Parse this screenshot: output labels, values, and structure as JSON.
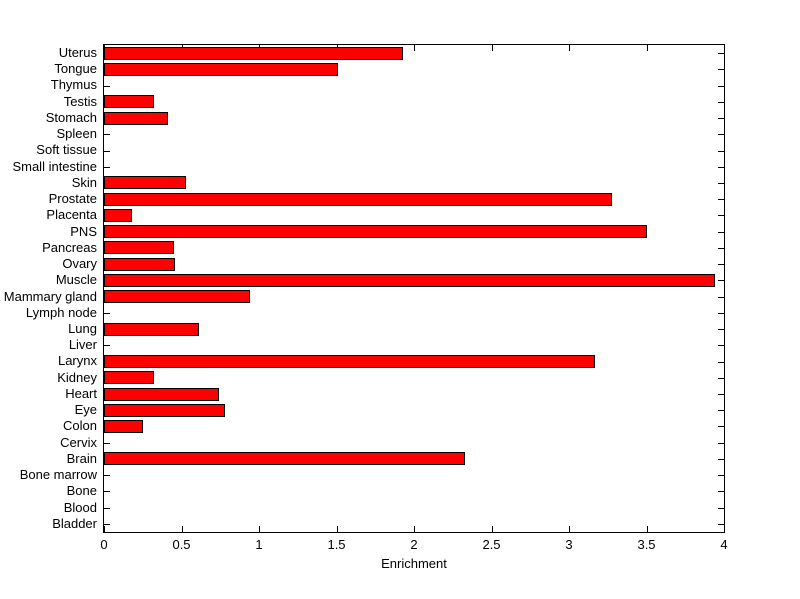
{
  "figure": {
    "background": "#FFFFFF",
    "axis_color": "#000000",
    "text_color": "#000000"
  },
  "chart_data": {
    "type": "bar",
    "orientation": "horizontal",
    "title": "",
    "xlabel": "Enrichment",
    "ylabel": "",
    "xlim": [
      0,
      4
    ],
    "xtick_values": [
      0,
      0.5,
      1,
      1.5,
      2,
      2.5,
      3,
      3.5,
      4
    ],
    "xtick_labels": [
      "0",
      "0.5",
      "1",
      "1.5",
      "2",
      "2.5",
      "3",
      "3.5",
      "4"
    ],
    "grid": false,
    "legend": "none",
    "bar_color": "#FF0000",
    "bar_edge_color": "#000000",
    "categories": [
      "Uterus",
      "Tongue",
      "Thymus",
      "Testis",
      "Stomach",
      "Spleen",
      "Soft tissue",
      "Small intestine",
      "Skin",
      "Prostate",
      "Placenta",
      "PNS",
      "Pancreas",
      "Ovary",
      "Muscle",
      "Mammary gland",
      "Lymph node",
      "Lung",
      "Liver",
      "Larynx",
      "Kidney",
      "Heart",
      "Eye",
      "Colon",
      "Cervix",
      "Brain",
      "Bone marrow",
      "Bone",
      "Blood",
      "Bladder"
    ],
    "values": [
      1.93,
      1.51,
      0,
      0.32,
      0.41,
      0,
      0,
      0,
      0.53,
      3.28,
      0.18,
      3.5,
      0.45,
      0.46,
      3.94,
      0.94,
      0,
      0.61,
      0,
      3.17,
      0.32,
      0.74,
      0.78,
      0.25,
      0,
      2.33,
      0,
      0,
      0,
      0
    ]
  }
}
